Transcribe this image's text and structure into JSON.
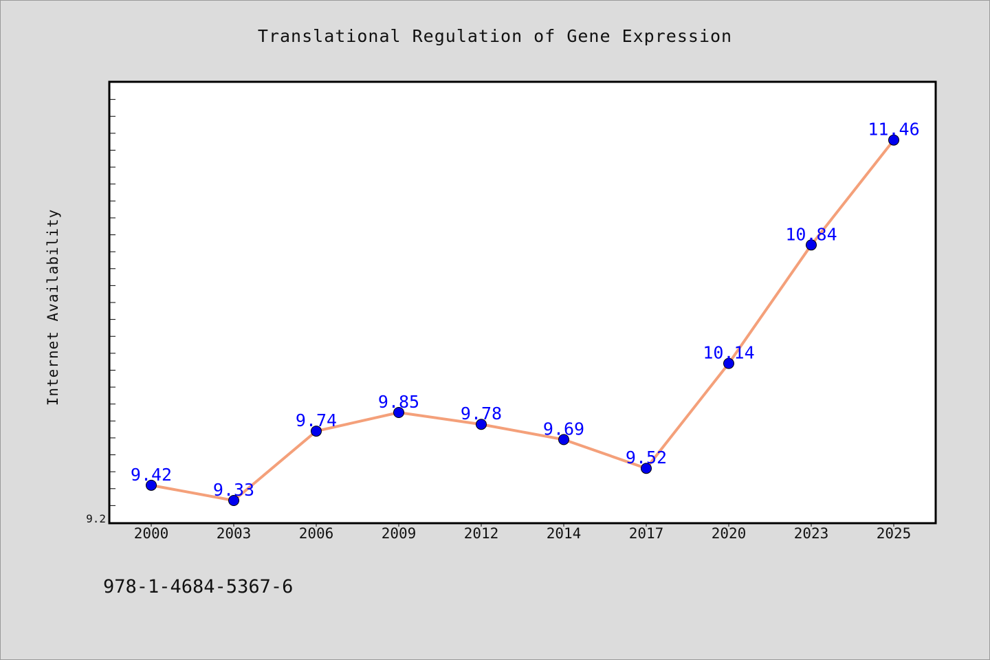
{
  "chart_data": {
    "type": "line",
    "title": "Translational Regulation of Gene Expression",
    "xlabel": "",
    "ylabel": "Internet Availability",
    "categories": [
      "2000",
      "2003",
      "2006",
      "2009",
      "2012",
      "2014",
      "2017",
      "2020",
      "2023",
      "2025"
    ],
    "series": [
      {
        "values": [
          9.42,
          9.33,
          9.74,
          9.85,
          9.78,
          9.69,
          9.52,
          10.14,
          10.84,
          11.46
        ],
        "data_labels": [
          "9.42",
          "9.33",
          "9.74",
          "9.85",
          "9.78",
          "9.69",
          "9.52",
          "10.14",
          "10.84",
          "11.46"
        ],
        "line_color": "#f4a07a",
        "marker_color": "#0000ee",
        "label_color": "#0000ff"
      }
    ],
    "ylim": [
      9.2,
      11.8
    ],
    "ytick_labels": [
      "9.2"
    ],
    "grid": false,
    "legend": "none"
  },
  "footer": {
    "text": "978-1-4684-5367-6"
  },
  "colors": {
    "background": "#dcdcdc",
    "plot_background": "#ffffff",
    "axis": "#000000"
  }
}
